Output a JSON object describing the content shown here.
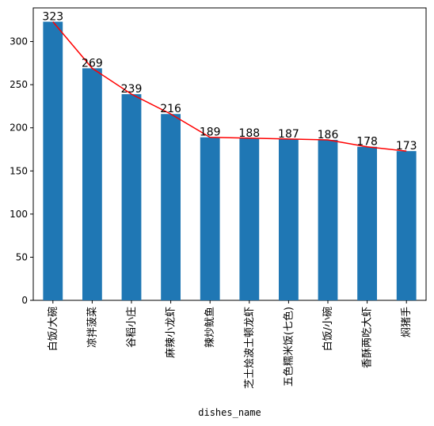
{
  "chart_data": {
    "type": "bar",
    "categories": [
      "白饭/大碗",
      "凉拌菠菜",
      "谷稻小庄",
      "麻辣小龙虾",
      "辣炒鱿鱼",
      "芝士烩波士顿龙虾",
      "五色糯米饭(七色)",
      "白饭/小碗",
      "香酥两吃大虾",
      "焖猪手"
    ],
    "values": [
      323,
      269,
      239,
      216,
      189,
      188,
      187,
      186,
      178,
      173
    ],
    "overlay_line": {
      "type": "line",
      "values": [
        323,
        269,
        239,
        216,
        189,
        188,
        187,
        186,
        178,
        173
      ],
      "color": "#ff0000"
    },
    "xlabel": "dishes_name",
    "ylabel": "",
    "ylim": [
      0,
      339
    ],
    "yticks": [
      0,
      50,
      100,
      150,
      200,
      250,
      300
    ],
    "bar_color": "#1f77b4",
    "grid": false,
    "legend": "none"
  }
}
